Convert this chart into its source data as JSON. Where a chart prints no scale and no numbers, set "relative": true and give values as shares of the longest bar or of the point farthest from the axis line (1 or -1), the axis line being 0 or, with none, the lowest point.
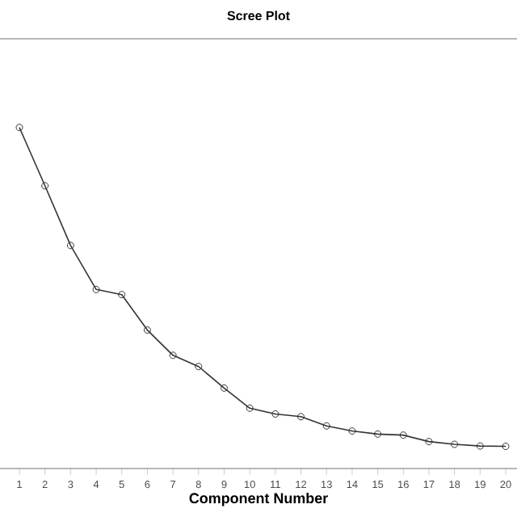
{
  "chart_data": {
    "type": "line",
    "title": "Scree Plot",
    "xlabel": "Component Number",
    "relative": true,
    "marker": "circle",
    "categories": [
      "1",
      "2",
      "3",
      "4",
      "5",
      "6",
      "7",
      "8",
      "9",
      "10",
      "11",
      "12",
      "13",
      "14",
      "15",
      "16",
      "17",
      "18",
      "19",
      "20"
    ],
    "series": [
      {
        "color": "#333333",
        "values": [
          1,
          0.829,
          0.654,
          0.525,
          0.51,
          0.406,
          0.332,
          0.299,
          0.236,
          0.177,
          0.16,
          0.152,
          0.125,
          0.11,
          0.101,
          0.098,
          0.079,
          0.071,
          0.066,
          0.065
        ]
      }
    ]
  }
}
